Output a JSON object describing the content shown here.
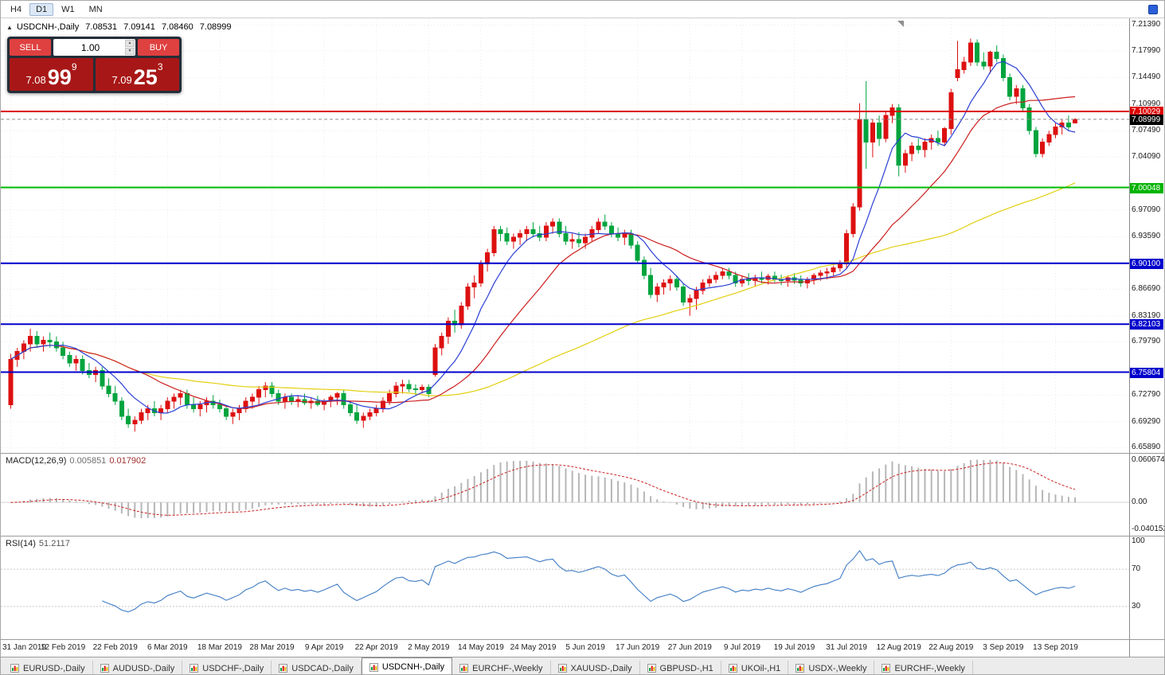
{
  "ui": {
    "toolbar": {
      "timeframes": [
        "H4",
        "D1",
        "W1",
        "MN"
      ],
      "active": "D1"
    },
    "chart_header": {
      "collapse_icon": "▲",
      "symbol": "USDCNH-,Daily",
      "open": "7.08531",
      "high": "7.09141",
      "low": "7.08460",
      "close": "7.08999"
    },
    "trade_panel": {
      "sell_label": "SELL",
      "buy_label": "BUY",
      "volume": "1.00",
      "spinner_up": "▲",
      "spinner_down": "▼",
      "sell_price": {
        "big": "7.08",
        "pips": "99",
        "sup": "9"
      },
      "buy_price": {
        "big": "7.09",
        "pips": "25",
        "sup": "3"
      }
    },
    "tabs": {
      "active_index": 4,
      "items": [
        "EURUSD-,Daily",
        "AUDUSD-,Daily",
        "USDCHF-,Daily",
        "USDCAD-,Daily",
        "USDCNH-,Daily",
        "EURCHF-,Weekly",
        "XAUUSD-,Daily",
        "GBPUSD-,H1",
        "UKOil-,H1",
        "USDX-,Weekly",
        "EURCHF-,Weekly"
      ]
    }
  },
  "chart_data": {
    "type": "candlestick",
    "symbol": "USDCNH-",
    "timeframe": "Daily",
    "price_axis": {
      "view_top": 7.2226,
      "view_bottom": 6.652,
      "ticks": [
        "7.21390",
        "7.17990",
        "7.14490",
        "7.10990",
        "7.07490",
        "7.04090",
        "6.97090",
        "6.93590",
        "6.86690",
        "6.83190",
        "6.79790",
        "6.72790",
        "6.69290",
        "6.65890"
      ]
    },
    "badges": [
      {
        "value": "7.10029",
        "price": 7.10029,
        "color": "#dd0000"
      },
      {
        "value": "7.00048",
        "price": 7.00048,
        "color": "#00b400"
      },
      {
        "value": "6.90100",
        "price": 6.901,
        "color": "#0000cc"
      },
      {
        "value": "6.82103",
        "price": 6.82103,
        "color": "#0000cc"
      },
      {
        "value": "6.75804",
        "price": 6.75804,
        "color": "#0000cc"
      },
      {
        "value": "7.08999",
        "price": 7.08999,
        "color": "#000000"
      }
    ],
    "hlines": [
      {
        "price": 7.10029,
        "color": "#dd0000",
        "width": 2
      },
      {
        "price": 7.00048,
        "color": "#00b800",
        "width": 2
      },
      {
        "price": 6.901,
        "color": "#0000cc",
        "width": 2
      },
      {
        "price": 6.82103,
        "color": "#0000cc",
        "width": 2
      },
      {
        "price": 6.75804,
        "color": "#0000cc",
        "width": 2
      }
    ],
    "current_price": 7.08999,
    "label_step": 8,
    "date_labels": [
      "31 Jan 2019",
      "12 Feb 2019",
      "22 Feb 2019",
      "6 Mar 2019",
      "18 Mar 2019",
      "28 Mar 2019",
      "9 Apr 2019",
      "22 Apr 2019",
      "2 May 2019",
      "14 May 2019",
      "24 May 2019",
      "5 Jun 2019",
      "17 Jun 2019",
      "27 Jun 2019",
      "9 Jul 2019",
      "19 Jul 2019",
      "31 Jul 2019",
      "12 Aug 2019",
      "22 Aug 2019",
      "3 Sep 2019",
      "13 Sep 2019"
    ],
    "ma_periods": [
      8,
      20,
      60
    ],
    "ma_colors": [
      "#2b3fd4",
      "#cc1f1f",
      "#e3cf10"
    ],
    "candle_colors": {
      "bull": "#dd1010",
      "bear": "#00a43e"
    },
    "candles": [
      [
        6.715,
        6.782,
        6.71,
        6.775
      ],
      [
        6.775,
        6.79,
        6.765,
        6.785
      ],
      [
        6.785,
        6.8,
        6.775,
        6.795
      ],
      [
        6.795,
        6.815,
        6.785,
        6.805
      ],
      [
        6.805,
        6.812,
        6.79,
        6.795
      ],
      [
        6.795,
        6.805,
        6.785,
        6.8
      ],
      [
        6.8,
        6.81,
        6.79,
        6.798
      ],
      [
        6.798,
        6.805,
        6.785,
        6.79
      ],
      [
        6.79,
        6.798,
        6.775,
        6.78
      ],
      [
        6.78,
        6.785,
        6.765,
        6.77
      ],
      [
        6.77,
        6.78,
        6.76,
        6.775
      ],
      [
        6.775,
        6.78,
        6.755,
        6.76
      ],
      [
        6.76,
        6.77,
        6.75,
        6.755
      ],
      [
        6.755,
        6.765,
        6.745,
        6.76
      ],
      [
        6.76,
        6.765,
        6.735,
        6.74
      ],
      [
        6.74,
        6.75,
        6.725,
        6.73
      ],
      [
        6.73,
        6.74,
        6.715,
        6.72
      ],
      [
        6.72,
        6.725,
        6.695,
        6.7
      ],
      [
        6.7,
        6.71,
        6.685,
        6.69
      ],
      [
        6.69,
        6.7,
        6.68,
        6.695
      ],
      [
        6.695,
        6.71,
        6.69,
        6.705
      ],
      [
        6.705,
        6.715,
        6.695,
        6.71
      ],
      [
        6.71,
        6.72,
        6.7,
        6.705
      ],
      [
        6.705,
        6.715,
        6.695,
        6.71
      ],
      [
        6.71,
        6.725,
        6.705,
        6.72
      ],
      [
        6.72,
        6.73,
        6.71,
        6.725
      ],
      [
        6.725,
        6.735,
        6.715,
        6.73
      ],
      [
        6.73,
        6.735,
        6.71,
        6.715
      ],
      [
        6.715,
        6.725,
        6.705,
        6.71
      ],
      [
        6.71,
        6.72,
        6.7,
        6.715
      ],
      [
        6.715,
        6.725,
        6.705,
        6.72
      ],
      [
        6.72,
        6.728,
        6.71,
        6.715
      ],
      [
        6.715,
        6.722,
        6.705,
        6.71
      ],
      [
        6.71,
        6.715,
        6.695,
        6.7
      ],
      [
        6.7,
        6.71,
        6.69,
        6.705
      ],
      [
        6.705,
        6.715,
        6.695,
        6.71
      ],
      [
        6.71,
        6.725,
        6.705,
        6.72
      ],
      [
        6.72,
        6.73,
        6.71,
        6.725
      ],
      [
        6.725,
        6.74,
        6.715,
        6.735
      ],
      [
        6.735,
        6.745,
        6.725,
        6.74
      ],
      [
        6.74,
        6.745,
        6.725,
        6.73
      ],
      [
        6.73,
        6.735,
        6.715,
        6.72
      ],
      [
        6.72,
        6.73,
        6.71,
        6.725
      ],
      [
        6.725,
        6.73,
        6.715,
        6.72
      ],
      [
        6.72,
        6.728,
        6.712,
        6.722
      ],
      [
        6.722,
        6.73,
        6.715,
        6.718
      ],
      [
        6.718,
        6.725,
        6.71,
        6.72
      ],
      [
        6.72,
        6.727,
        6.713,
        6.716
      ],
      [
        6.716,
        6.723,
        6.708,
        6.72
      ],
      [
        6.72,
        6.728,
        6.712,
        6.725
      ],
      [
        6.725,
        6.732,
        6.715,
        6.73
      ],
      [
        6.73,
        6.735,
        6.71,
        6.715
      ],
      [
        6.715,
        6.72,
        6.7,
        6.705
      ],
      [
        6.705,
        6.715,
        6.69,
        6.695
      ],
      [
        6.695,
        6.705,
        6.685,
        6.7
      ],
      [
        6.7,
        6.71,
        6.695,
        6.705
      ],
      [
        6.705,
        6.715,
        6.7,
        6.71
      ],
      [
        6.71,
        6.725,
        6.705,
        6.72
      ],
      [
        6.72,
        6.735,
        6.715,
        6.73
      ],
      [
        6.73,
        6.745,
        6.725,
        6.74
      ],
      [
        6.74,
        6.748,
        6.73,
        6.742
      ],
      [
        6.742,
        6.748,
        6.732,
        6.736
      ],
      [
        6.736,
        6.742,
        6.728,
        6.735
      ],
      [
        6.735,
        6.742,
        6.73,
        6.738
      ],
      [
        6.738,
        6.742,
        6.725,
        6.73
      ],
      [
        6.755,
        6.795,
        6.752,
        6.79
      ],
      [
        6.79,
        6.81,
        6.78,
        6.805
      ],
      [
        6.805,
        6.83,
        6.795,
        6.825
      ],
      [
        6.825,
        6.84,
        6.81,
        6.82
      ],
      [
        6.82,
        6.85,
        6.815,
        6.845
      ],
      [
        6.845,
        6.875,
        6.84,
        6.87
      ],
      [
        6.87,
        6.885,
        6.855,
        6.875
      ],
      [
        6.875,
        6.905,
        6.87,
        6.9
      ],
      [
        6.9,
        6.92,
        6.89,
        6.915
      ],
      [
        6.915,
        6.95,
        6.91,
        6.945
      ],
      [
        6.945,
        6.95,
        6.93,
        6.94
      ],
      [
        6.94,
        6.948,
        6.925,
        6.93
      ],
      [
        6.93,
        6.94,
        6.92,
        6.935
      ],
      [
        6.935,
        6.945,
        6.925,
        6.94
      ],
      [
        6.94,
        6.95,
        6.93,
        6.945
      ],
      [
        6.945,
        6.955,
        6.935,
        6.94
      ],
      [
        6.94,
        6.95,
        6.93,
        6.935
      ],
      [
        6.935,
        6.955,
        6.93,
        6.95
      ],
      [
        6.95,
        6.96,
        6.94,
        6.955
      ],
      [
        6.955,
        6.96,
        6.935,
        6.94
      ],
      [
        6.94,
        6.95,
        6.925,
        6.93
      ],
      [
        6.93,
        6.94,
        6.92,
        6.932
      ],
      [
        6.932,
        6.942,
        6.922,
        6.928
      ],
      [
        6.928,
        6.94,
        6.92,
        6.935
      ],
      [
        6.935,
        6.95,
        6.93,
        6.945
      ],
      [
        6.945,
        6.96,
        6.94,
        6.955
      ],
      [
        6.955,
        6.965,
        6.945,
        6.95
      ],
      [
        6.95,
        6.955,
        6.935,
        6.94
      ],
      [
        6.94,
        6.948,
        6.93,
        6.935
      ],
      [
        6.935,
        6.945,
        6.925,
        6.94
      ],
      [
        6.94,
        6.945,
        6.92,
        6.925
      ],
      [
        6.925,
        6.93,
        6.9,
        6.905
      ],
      [
        6.905,
        6.91,
        6.88,
        6.885
      ],
      [
        6.885,
        6.895,
        6.855,
        6.86
      ],
      [
        6.86,
        6.875,
        6.85,
        6.87
      ],
      [
        6.87,
        6.88,
        6.86,
        6.875
      ],
      [
        6.875,
        6.885,
        6.865,
        6.88
      ],
      [
        6.88,
        6.885,
        6.865,
        6.87
      ],
      [
        6.87,
        6.875,
        6.845,
        6.85
      ],
      [
        6.85,
        6.86,
        6.832,
        6.855
      ],
      [
        6.855,
        6.87,
        6.84,
        6.865
      ],
      [
        6.865,
        6.88,
        6.86,
        6.875
      ],
      [
        6.875,
        6.885,
        6.87,
        6.88
      ],
      [
        6.88,
        6.89,
        6.875,
        6.885
      ],
      [
        6.885,
        6.895,
        6.88,
        6.89
      ],
      [
        6.89,
        6.895,
        6.88,
        6.885
      ],
      [
        6.885,
        6.89,
        6.87,
        6.875
      ],
      [
        6.875,
        6.885,
        6.87,
        6.88
      ],
      [
        6.88,
        6.888,
        6.872,
        6.878
      ],
      [
        6.878,
        6.886,
        6.87,
        6.882
      ],
      [
        6.882,
        6.89,
        6.875,
        6.88
      ],
      [
        6.88,
        6.887,
        6.873,
        6.884
      ],
      [
        6.884,
        6.89,
        6.876,
        6.88
      ],
      [
        6.88,
        6.886,
        6.872,
        6.878
      ],
      [
        6.878,
        6.885,
        6.87,
        6.882
      ],
      [
        6.882,
        6.888,
        6.874,
        6.879
      ],
      [
        6.879,
        6.885,
        6.87,
        6.875
      ],
      [
        6.875,
        6.883,
        6.868,
        6.88
      ],
      [
        6.88,
        6.888,
        6.873,
        6.885
      ],
      [
        6.885,
        6.892,
        6.878,
        6.888
      ],
      [
        6.888,
        6.895,
        6.88,
        6.89
      ],
      [
        6.89,
        6.898,
        6.885,
        6.895
      ],
      [
        6.895,
        6.905,
        6.89,
        6.9
      ],
      [
        6.9,
        6.945,
        6.895,
        6.94
      ],
      [
        6.94,
        6.98,
        6.935,
        6.975
      ],
      [
        6.975,
        7.111,
        6.97,
        7.09
      ],
      [
        7.09,
        7.14,
        7.025,
        7.06
      ],
      [
        7.06,
        7.09,
        7.04,
        7.085
      ],
      [
        7.085,
        7.095,
        7.055,
        7.065
      ],
      [
        7.065,
        7.1,
        7.06,
        7.095
      ],
      [
        7.095,
        7.11,
        7.085,
        7.105
      ],
      [
        7.105,
        7.11,
        7.015,
        7.03
      ],
      [
        7.03,
        7.05,
        7.02,
        7.045
      ],
      [
        7.045,
        7.06,
        7.035,
        7.055
      ],
      [
        7.055,
        7.065,
        7.045,
        7.05
      ],
      [
        7.05,
        7.065,
        7.04,
        7.06
      ],
      [
        7.06,
        7.07,
        7.05,
        7.065
      ],
      [
        7.065,
        7.075,
        7.055,
        7.06
      ],
      [
        7.06,
        7.08,
        7.055,
        7.078
      ],
      [
        7.078,
        7.13,
        7.07,
        7.125
      ],
      [
        7.145,
        7.193,
        7.14,
        7.155
      ],
      [
        7.155,
        7.172,
        7.15,
        7.165
      ],
      [
        7.165,
        7.196,
        7.16,
        7.19
      ],
      [
        7.19,
        7.195,
        7.16,
        7.165
      ],
      [
        7.165,
        7.178,
        7.155,
        7.16
      ],
      [
        7.16,
        7.18,
        7.15,
        7.178
      ],
      [
        7.178,
        7.187,
        7.165,
        7.17
      ],
      [
        7.17,
        7.175,
        7.14,
        7.145
      ],
      [
        7.145,
        7.15,
        7.115,
        7.12
      ],
      [
        7.12,
        7.135,
        7.11,
        7.13
      ],
      [
        7.13,
        7.135,
        7.1,
        7.105
      ],
      [
        7.105,
        7.11,
        7.07,
        7.075
      ],
      [
        7.075,
        7.08,
        7.04,
        7.045
      ],
      [
        7.045,
        7.065,
        7.04,
        7.06
      ],
      [
        7.06,
        7.075,
        7.055,
        7.07
      ],
      [
        7.07,
        7.085,
        7.065,
        7.08
      ],
      [
        7.08,
        7.09,
        7.07,
        7.085
      ],
      [
        7.085,
        7.095,
        7.075,
        7.08
      ],
      [
        7.08531,
        7.09141,
        7.0846,
        7.08999
      ]
    ],
    "indicators": {
      "macd": {
        "name": "MACD(12,26,9)",
        "value_main": "0.005851",
        "value_signal": "0.017902",
        "fast": 12,
        "slow": 26,
        "signal": 9,
        "scale_top": "0.060674",
        "scale_zero": "0.00",
        "scale_bottom": "-0.040152",
        "range_top": 0.060674,
        "range_bottom": -0.040152,
        "hist_color": "#b6b6b6",
        "signal_color": "#cc2222"
      },
      "rsi": {
        "name": "RSI(14)",
        "value": "51.2117",
        "period": 14,
        "levels": [
          "100",
          "70",
          "30"
        ],
        "level_lines": [
          70,
          30
        ],
        "line_color": "#3f7cc4"
      }
    }
  }
}
